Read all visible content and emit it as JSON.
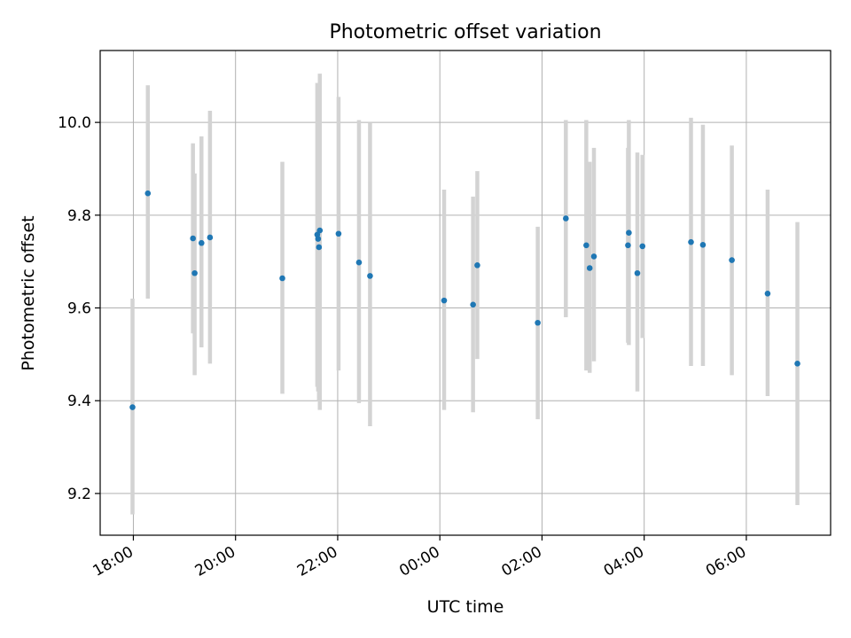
{
  "chart_data": {
    "type": "scatter",
    "title": "Photometric offset variation",
    "xlabel": "UTC time",
    "ylabel": "Photometric offset",
    "x_tick_labels": [
      "18:00",
      "20:00",
      "22:00",
      "00:00",
      "02:00",
      "04:00",
      "06:00"
    ],
    "y_tick_labels": [
      "9.2",
      "9.4",
      "9.6",
      "9.8",
      "10.0"
    ],
    "xlim_hours_since_1800": [
      -0.65,
      13.65
    ],
    "ylim": [
      9.11,
      10.155
    ],
    "grid": true,
    "colors": {
      "points": "#1f77b4",
      "error_bars": "#d3d3d3",
      "grid": "#b0b0b0"
    },
    "series": [
      {
        "points": [
          {
            "time": "17:59",
            "y": 9.386,
            "lo": 9.155,
            "hi": 9.62
          },
          {
            "time": "18:17",
            "y": 9.847,
            "lo": 9.62,
            "hi": 10.08
          },
          {
            "time": "19:10",
            "y": 9.75,
            "lo": 9.545,
            "hi": 9.955
          },
          {
            "time": "19:12",
            "y": 9.675,
            "lo": 9.455,
            "hi": 9.89
          },
          {
            "time": "19:20",
            "y": 9.74,
            "lo": 9.515,
            "hi": 9.97
          },
          {
            "time": "19:30",
            "y": 9.752,
            "lo": 9.48,
            "hi": 10.025
          },
          {
            "time": "20:55",
            "y": 9.664,
            "lo": 9.415,
            "hi": 9.915
          },
          {
            "time": "21:36",
            "y": 9.758,
            "lo": 9.43,
            "hi": 10.085
          },
          {
            "time": "21:37",
            "y": 9.749,
            "lo": 9.42,
            "hi": 10.07
          },
          {
            "time": "21:38",
            "y": 9.731,
            "lo": 9.4,
            "hi": 10.06
          },
          {
            "time": "21:39",
            "y": 9.767,
            "lo": 9.38,
            "hi": 10.105
          },
          {
            "time": "22:01",
            "y": 9.76,
            "lo": 9.465,
            "hi": 10.055
          },
          {
            "time": "22:25",
            "y": 9.698,
            "lo": 9.395,
            "hi": 10.005
          },
          {
            "time": "22:38",
            "y": 9.669,
            "lo": 9.345,
            "hi": 10.0
          },
          {
            "time": "00:05",
            "y": 9.616,
            "lo": 9.38,
            "hi": 9.855
          },
          {
            "time": "00:39",
            "y": 9.607,
            "lo": 9.375,
            "hi": 9.84
          },
          {
            "time": "00:44",
            "y": 9.692,
            "lo": 9.49,
            "hi": 9.895
          },
          {
            "time": "01:55",
            "y": 9.568,
            "lo": 9.36,
            "hi": 9.775
          },
          {
            "time": "02:28",
            "y": 9.793,
            "lo": 9.58,
            "hi": 10.005
          },
          {
            "time": "02:52",
            "y": 9.735,
            "lo": 9.465,
            "hi": 10.005
          },
          {
            "time": "02:56",
            "y": 9.686,
            "lo": 9.46,
            "hi": 9.915
          },
          {
            "time": "03:01",
            "y": 9.711,
            "lo": 9.485,
            "hi": 9.945
          },
          {
            "time": "03:41",
            "y": 9.735,
            "lo": 9.525,
            "hi": 9.945
          },
          {
            "time": "03:42",
            "y": 9.762,
            "lo": 9.52,
            "hi": 10.005
          },
          {
            "time": "03:52",
            "y": 9.675,
            "lo": 9.42,
            "hi": 9.935
          },
          {
            "time": "03:58",
            "y": 9.733,
            "lo": 9.535,
            "hi": 9.93
          },
          {
            "time": "04:55",
            "y": 9.742,
            "lo": 9.475,
            "hi": 10.01
          },
          {
            "time": "05:09",
            "y": 9.736,
            "lo": 9.475,
            "hi": 9.995
          },
          {
            "time": "05:43",
            "y": 9.703,
            "lo": 9.455,
            "hi": 9.95
          },
          {
            "time": "06:25",
            "y": 9.631,
            "lo": 9.41,
            "hi": 9.855
          },
          {
            "time": "07:00",
            "y": 9.48,
            "lo": 9.175,
            "hi": 9.785
          }
        ]
      }
    ]
  }
}
